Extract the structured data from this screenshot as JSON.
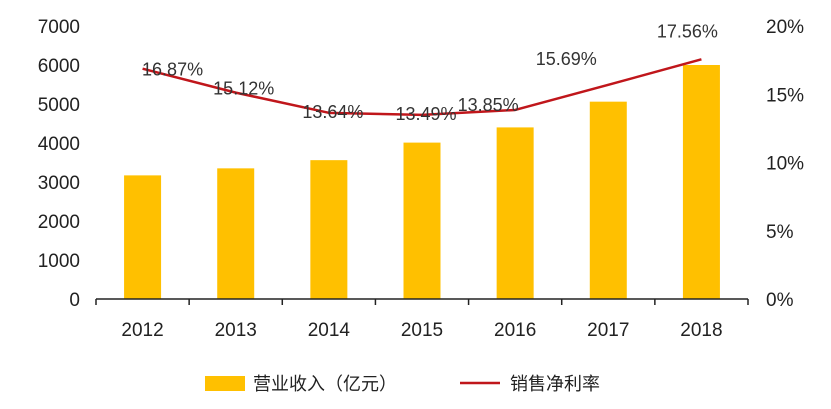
{
  "chart_data": {
    "type": "bar",
    "categories": [
      "2012",
      "2013",
      "2014",
      "2015",
      "2016",
      "2017",
      "2018"
    ],
    "series": [
      {
        "name": "营业收入（亿元）",
        "type": "bar",
        "axis": "left",
        "color": "#FFC000",
        "values": [
          3170,
          3350,
          3560,
          4010,
          4400,
          5060,
          6000
        ]
      },
      {
        "name": "销售净利率",
        "type": "line",
        "axis": "right",
        "color": "#C0161B",
        "values": [
          16.87,
          15.12,
          13.64,
          13.49,
          13.85,
          15.69,
          17.56
        ],
        "labels": [
          "16.87%",
          "15.12%",
          "13.64%",
          "13.49%",
          "13.85%",
          "15.69%",
          "17.56%"
        ]
      }
    ],
    "y_left": {
      "min": 0,
      "max": 7000,
      "ticks": [
        "0",
        "1000",
        "2000",
        "3000",
        "4000",
        "5000",
        "6000",
        "7000"
      ]
    },
    "y_right": {
      "min": 0,
      "max": 20,
      "ticks": [
        "0%",
        "5%",
        "10%",
        "15%",
        "20%"
      ]
    },
    "grid": false,
    "legend_position": "bottom"
  }
}
